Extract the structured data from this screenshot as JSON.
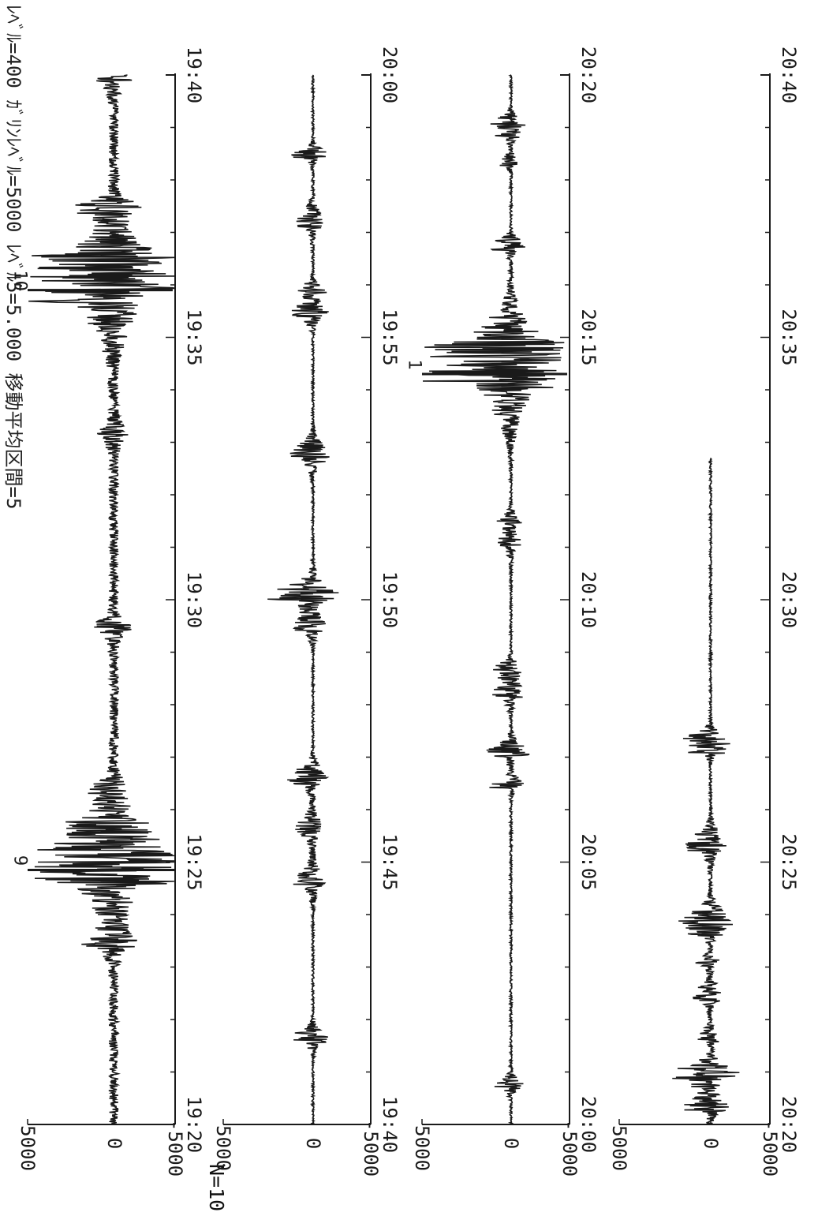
{
  "header": {
    "text": "ﾚﾍﾞﾙ=400 ｶﾞﾘﾝﾚﾍﾞﾙ=5000 ﾚﾍﾞﾙ5=5.000 移動平均区間=5",
    "n_label": "N=10"
  },
  "chart_data": {
    "type": "line",
    "title": "",
    "xlabel": "",
    "ylabel": "",
    "ylim": [
      -5000,
      5000
    ],
    "yticks": [
      "5000",
      "0",
      "-5000"
    ],
    "rows": [
      {
        "xticks": [
          "19:20",
          "19:25",
          "19:30",
          "19:35",
          "19:40"
        ],
        "events": [
          {
            "label": "9",
            "time": 4.85,
            "amp_up": 5000,
            "amp_down": -5000
          },
          {
            "label": "10",
            "time": 15.9,
            "amp_up": 5000,
            "amp_down": -4800
          }
        ]
      },
      {
        "xticks": [
          "19:40",
          "19:45",
          "19:50",
          "19:55",
          "20:00"
        ],
        "events": []
      },
      {
        "xticks": [
          "20:00",
          "20:05",
          "20:10",
          "20:15",
          "20:20"
        ],
        "events": [
          {
            "label": "1",
            "time": 14.3,
            "amp_up": 5000,
            "amp_down": -4800
          }
        ]
      },
      {
        "xticks": [
          "20:20",
          "20:25",
          "20:30",
          "20:35",
          "20:40"
        ],
        "events": []
      }
    ]
  },
  "style": {
    "ink": "#1a1a1a",
    "paper": "#ffffff",
    "rows": 4
  }
}
